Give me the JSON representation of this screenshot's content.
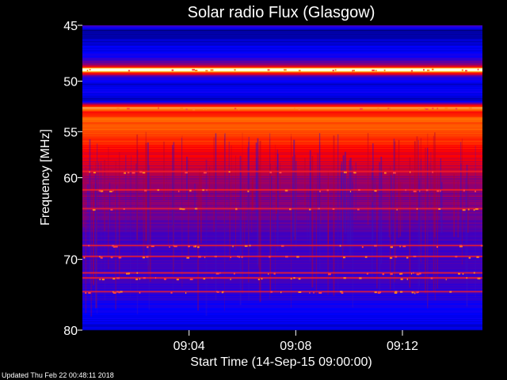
{
  "chart_data": {
    "type": "heatmap",
    "title": "Solar radio Flux (Glasgow)",
    "ylabel": "Frequency [MHz]",
    "xlabel": "Start Time (14-Sep-15 09:00:00)",
    "ylim": [
      45,
      80
    ],
    "y_scale": "log",
    "y_ticks": [
      {
        "value": 45,
        "label": "45"
      },
      {
        "value": 50,
        "label": "50"
      },
      {
        "value": 55,
        "label": "55"
      },
      {
        "value": 60,
        "label": "60"
      },
      {
        "value": 70,
        "label": "70"
      },
      {
        "value": 80,
        "label": "80"
      }
    ],
    "xlim_minutes": [
      0,
      15
    ],
    "x_ticks": [
      {
        "value": 4,
        "label": "09:04"
      },
      {
        "value": 8,
        "label": "09:08"
      },
      {
        "value": 12,
        "label": "09:12"
      }
    ],
    "colormap": [
      "#00005a",
      "#0000ff",
      "#6000a0",
      "#ff0000",
      "#ff8000",
      "#ffff80",
      "#ffffff"
    ],
    "frequency_profile": [
      {
        "mhz": 45.0,
        "level": 0.28
      },
      {
        "mhz": 45.4,
        "level": 0.05
      },
      {
        "mhz": 46.5,
        "level": 0.12
      },
      {
        "mhz": 47.8,
        "level": 0.2
      },
      {
        "mhz": 48.6,
        "level": 0.45
      },
      {
        "mhz": 48.9,
        "level": 0.97
      },
      {
        "mhz": 49.2,
        "level": 0.55
      },
      {
        "mhz": 49.6,
        "level": 0.25
      },
      {
        "mhz": 50.2,
        "level": 0.12
      },
      {
        "mhz": 51.0,
        "level": 0.18
      },
      {
        "mhz": 51.8,
        "level": 0.08
      },
      {
        "mhz": 52.6,
        "level": 0.72
      },
      {
        "mhz": 53.0,
        "level": 0.5
      },
      {
        "mhz": 53.6,
        "level": 0.62
      },
      {
        "mhz": 55.0,
        "level": 0.6
      },
      {
        "mhz": 56.5,
        "level": 0.52
      },
      {
        "mhz": 58.0,
        "level": 0.47
      },
      {
        "mhz": 60.0,
        "level": 0.4
      },
      {
        "mhz": 62.0,
        "level": 0.37
      },
      {
        "mhz": 64.5,
        "level": 0.34
      },
      {
        "mhz": 66.5,
        "level": 0.3
      },
      {
        "mhz": 69.0,
        "level": 0.27
      },
      {
        "mhz": 72.0,
        "level": 0.28
      },
      {
        "mhz": 74.5,
        "level": 0.24
      },
      {
        "mhz": 76.0,
        "level": 0.2
      },
      {
        "mhz": 78.0,
        "level": 0.17
      },
      {
        "mhz": 80.0,
        "level": 0.12
      }
    ],
    "bright_lines_mhz": [
      48.9,
      52.6,
      59.3,
      61.4,
      63.6,
      68.2,
      69.6,
      71.8,
      72.5,
      74.4
    ]
  },
  "footer": {
    "updated": "Updated Thu Feb 22 00:48:11 2018"
  }
}
